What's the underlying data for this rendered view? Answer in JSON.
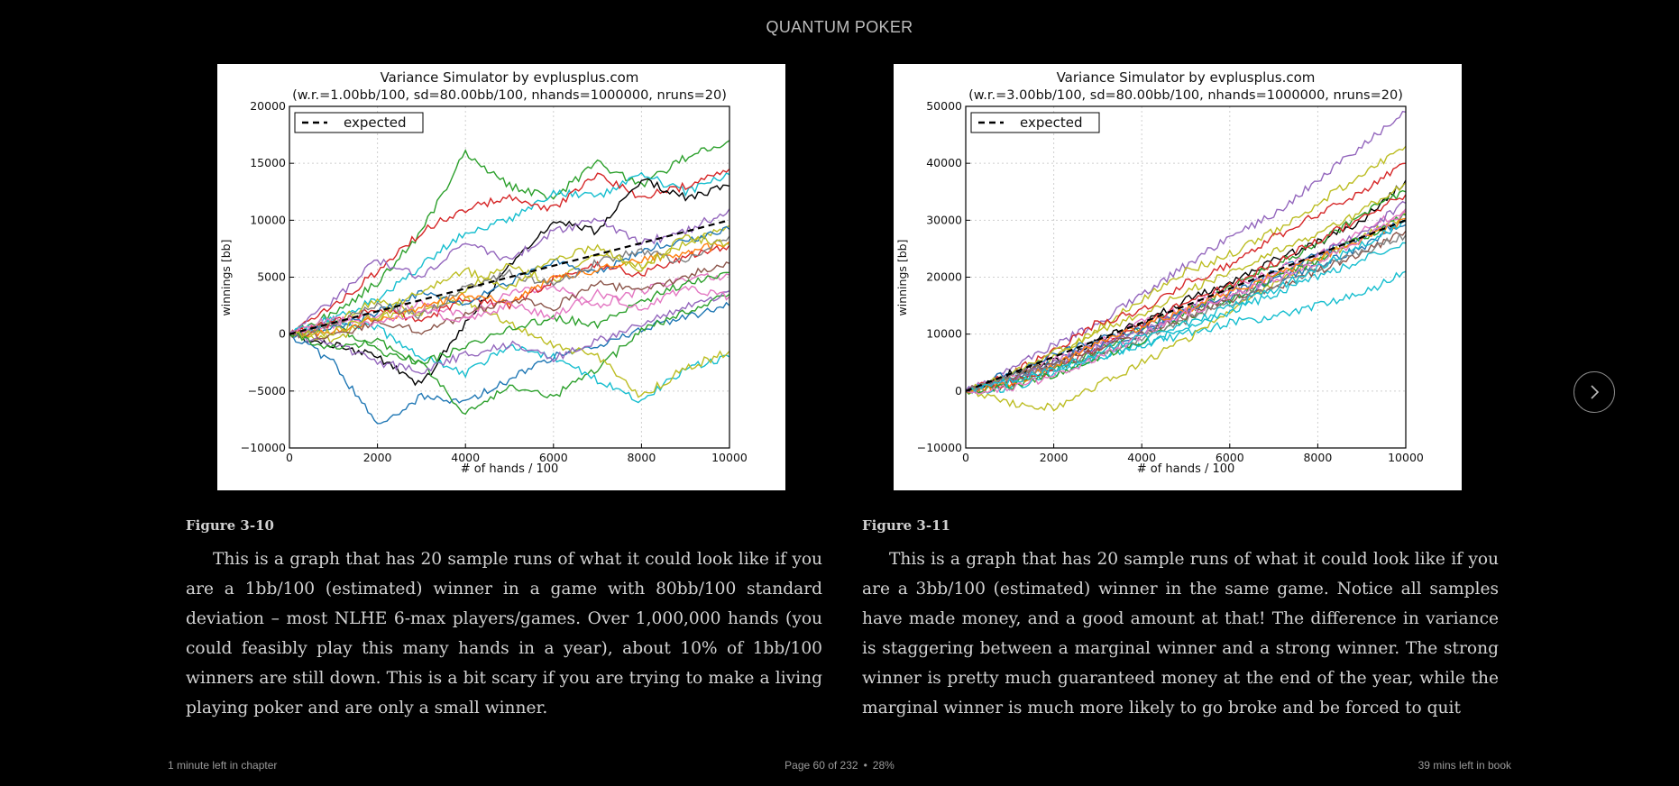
{
  "header": {
    "book_title": "QUANTUM POKER"
  },
  "figures": [
    {
      "caption": "Figure 3-10",
      "paragraph": "This is a graph that has 20 sample runs of what it could look like if you are a 1bb/100 (estimated) winner in a game with 80bb/100 standard deviation – most NLHE 6-max players/games. Over 1,000,000 hands (you could feasibly play this many hands in a year), about 10% of 1bb/100 winners are still down. This is a bit scary if you are trying to make a living playing poker and are only a small winner."
    },
    {
      "caption": "Figure 3-11",
      "paragraph": "This is a graph that has 20 sample runs of what it could look like if you are a 3bb/100 (estimated) winner in the same game. Notice all samples have made money, and a good amount at that! The difference in variance is staggering between a marginal winner and a strong winner. The strong winner is pretty much guaranteed money at the end of the year, while the marginal winner is much more likely to go broke and be forced to quit"
    }
  ],
  "chart_data": [
    {
      "type": "line",
      "title": "Variance Simulator by evplusplus.com",
      "subtitle": "(w.r.=1.00bb/100, sd=80.00bb/100, nhands=1000000, nruns=20)",
      "xlabel": "# of hands / 100",
      "ylabel": "winnings [bb]",
      "xlim": [
        0,
        10000
      ],
      "ylim": [
        -10000,
        20000
      ],
      "xticks": [
        0,
        2000,
        4000,
        6000,
        8000,
        10000
      ],
      "yticks": [
        -10000,
        -5000,
        0,
        5000,
        10000,
        15000,
        20000
      ],
      "ytick_labels": [
        "−10000",
        "−5000",
        "0",
        "5000",
        "10000",
        "15000",
        "20000"
      ],
      "grid": true,
      "legend": {
        "position": "top-left",
        "entries": [
          "expected"
        ]
      },
      "expected": {
        "x": [
          0,
          10000
        ],
        "y": [
          0,
          10000
        ]
      },
      "series": [
        {
          "color": "#2ca02c",
          "values": [
            0,
            1800,
            4500,
            9000,
            16000,
            13000,
            12000,
            15000,
            13000,
            15500,
            17000
          ]
        },
        {
          "color": "#17becf",
          "values": [
            0,
            1500,
            3000,
            6000,
            9000,
            10000,
            12500,
            12000,
            14000,
            12500,
            14000
          ]
        },
        {
          "color": "#d62728",
          "values": [
            0,
            2500,
            5500,
            9000,
            11000,
            12000,
            11000,
            14000,
            12000,
            13000,
            14500
          ]
        },
        {
          "color": "#000000",
          "values": [
            0,
            -1000,
            -2000,
            -4500,
            1000,
            6000,
            10000,
            9000,
            13500,
            12000,
            13000
          ]
        },
        {
          "color": "#9467bd",
          "values": [
            0,
            3000,
            6500,
            5000,
            8000,
            6500,
            9000,
            10000,
            8000,
            9000,
            11000
          ]
        },
        {
          "color": "#bcbd22",
          "values": [
            0,
            1000,
            3000,
            2000,
            4000,
            6000,
            4500,
            7000,
            6000,
            8000,
            9500
          ]
        },
        {
          "color": "#1f77b4",
          "values": [
            0,
            -2500,
            -8000,
            -5500,
            -6000,
            -4000,
            -2000,
            -1000,
            500,
            1500,
            2500
          ]
        },
        {
          "color": "#2ca02c",
          "values": [
            0,
            800,
            -1500,
            -2500,
            -7000,
            -4500,
            -5500,
            -3000,
            200,
            2000,
            3500
          ]
        },
        {
          "color": "#17becf",
          "values": [
            0,
            1200,
            500,
            -2000,
            -3500,
            -1000,
            -2000,
            -4000,
            -6000,
            -3000,
            -2000
          ]
        },
        {
          "color": "#bcbd22",
          "values": [
            0,
            -500,
            1500,
            2000,
            3000,
            1000,
            -1000,
            -2000,
            -5500,
            -3000,
            -1500
          ]
        },
        {
          "color": "#e377c2",
          "values": [
            0,
            800,
            1800,
            2800,
            1500,
            3500,
            4200,
            2500,
            3800,
            4800,
            5200
          ]
        },
        {
          "color": "#d62728",
          "values": [
            0,
            1000,
            2200,
            1200,
            3200,
            2400,
            4800,
            6200,
            5200,
            6800,
            7800
          ]
        },
        {
          "color": "#9467bd",
          "values": [
            0,
            -800,
            -2500,
            -3200,
            -1800,
            -900,
            -2200,
            -600,
            800,
            2300,
            3800
          ]
        },
        {
          "color": "#1f77b4",
          "values": [
            0,
            600,
            1900,
            3600,
            2600,
            4600,
            6400,
            5400,
            7400,
            8200,
            9200
          ]
        },
        {
          "color": "#ff7f0e",
          "values": [
            0,
            300,
            1300,
            2300,
            3400,
            2900,
            4900,
            5600,
            6600,
            7100,
            8100
          ]
        },
        {
          "color": "#8c564b",
          "values": [
            0,
            -300,
            1100,
            200,
            1600,
            3100,
            2300,
            4600,
            3600,
            5100,
            6200
          ]
        },
        {
          "color": "#7f7f7f",
          "values": [
            0,
            900,
            2600,
            1600,
            4100,
            5300,
            4300,
            6300,
            7300,
            6300,
            8600
          ]
        },
        {
          "color": "#2ca02c",
          "values": [
            0,
            -1300,
            -600,
            -2600,
            -1100,
            400,
            1400,
            900,
            2900,
            4400,
            5400
          ]
        },
        {
          "color": "#e377c2",
          "values": [
            0,
            1400,
            700,
            2100,
            1100,
            2600,
            1600,
            3600,
            2100,
            4100,
            3300
          ]
        },
        {
          "color": "#bcbd22",
          "values": [
            0,
            200,
            1600,
            3900,
            5600,
            4100,
            6600,
            7600,
            5600,
            8600,
            7900
          ]
        }
      ]
    },
    {
      "type": "line",
      "title": "Variance Simulator by evplusplus.com",
      "subtitle": "(w.r.=3.00bb/100, sd=80.00bb/100, nhands=1000000, nruns=20)",
      "xlabel": "# of hands / 100",
      "ylabel": "winnings [bb]",
      "xlim": [
        0,
        10000
      ],
      "ylim": [
        -10000,
        50000
      ],
      "xticks": [
        0,
        2000,
        4000,
        6000,
        8000,
        10000
      ],
      "yticks": [
        -10000,
        0,
        10000,
        20000,
        30000,
        40000,
        50000
      ],
      "ytick_labels": [
        "−10000",
        "0",
        "10000",
        "20000",
        "30000",
        "40000",
        "50000"
      ],
      "grid": true,
      "legend": {
        "position": "top-left",
        "entries": [
          "expected"
        ]
      },
      "expected": {
        "x": [
          0,
          10000
        ],
        "y": [
          0,
          30000
        ]
      },
      "series": [
        {
          "color": "#9467bd",
          "values": [
            0,
            4000,
            8000,
            12000,
            17000,
            22000,
            27000,
            31000,
            37000,
            43000,
            49000
          ]
        },
        {
          "color": "#bcbd22",
          "values": [
            0,
            1500,
            6000,
            11000,
            16000,
            21000,
            24000,
            28000,
            33000,
            38000,
            43000
          ]
        },
        {
          "color": "#d62728",
          "values": [
            0,
            3000,
            7000,
            12000,
            14000,
            19000,
            22000,
            27000,
            31000,
            35000,
            40000
          ]
        },
        {
          "color": "#000000",
          "values": [
            0,
            3000,
            5000,
            9000,
            12000,
            16000,
            19000,
            23000,
            26000,
            30000,
            37000
          ]
        },
        {
          "color": "#17becf",
          "values": [
            0,
            2000,
            4000,
            6000,
            8000,
            10000,
            12000,
            13000,
            15000,
            17000,
            21000
          ]
        },
        {
          "color": "#bcbd22",
          "values": [
            0,
            -2000,
            -3000,
            1000,
            5000,
            9000,
            14000,
            19000,
            23000,
            27000,
            31000
          ]
        },
        {
          "color": "#1f77b4",
          "values": [
            0,
            2000,
            5000,
            8000,
            10000,
            14000,
            17000,
            21000,
            24000,
            27000,
            30000
          ]
        },
        {
          "color": "#2ca02c",
          "values": [
            0,
            1000,
            4000,
            7000,
            11000,
            14000,
            18000,
            22000,
            26000,
            31000,
            35000
          ]
        },
        {
          "color": "#e377c2",
          "values": [
            0,
            2500,
            5500,
            8500,
            12000,
            14500,
            18000,
            21000,
            24000,
            28000,
            32000
          ]
        },
        {
          "color": "#17becf",
          "values": [
            0,
            500,
            3000,
            6000,
            8000,
            11000,
            14000,
            17000,
            20000,
            23000,
            26000
          ]
        },
        {
          "color": "#d62728",
          "values": [
            0,
            1500,
            3500,
            7500,
            11500,
            15500,
            18500,
            22500,
            26500,
            30500,
            34500
          ]
        },
        {
          "color": "#1f77b4",
          "values": [
            0,
            3200,
            6200,
            9200,
            11200,
            14200,
            16200,
            19200,
            22200,
            25200,
            29200
          ]
        },
        {
          "color": "#9467bd",
          "values": [
            0,
            1800,
            4800,
            7800,
            10800,
            13800,
            16800,
            19800,
            23800,
            27800,
            33000
          ]
        },
        {
          "color": "#bcbd22",
          "values": [
            0,
            2600,
            6600,
            10600,
            13600,
            17600,
            20600,
            24600,
            27600,
            31600,
            36600
          ]
        },
        {
          "color": "#2ca02c",
          "values": [
            0,
            900,
            2900,
            5900,
            8900,
            12900,
            15900,
            19900,
            22900,
            26900,
            30900
          ]
        },
        {
          "color": "#8c564b",
          "values": [
            0,
            2100,
            5100,
            7100,
            10100,
            13100,
            16100,
            18100,
            21100,
            24100,
            28100
          ]
        },
        {
          "color": "#ff7f0e",
          "values": [
            0,
            1300,
            4300,
            8300,
            11300,
            14300,
            17300,
            20300,
            23300,
            26300,
            30300
          ]
        },
        {
          "color": "#7f7f7f",
          "values": [
            0,
            2400,
            4400,
            6400,
            9400,
            12400,
            15400,
            18400,
            21400,
            24400,
            27400
          ]
        },
        {
          "color": "#e377c2",
          "values": [
            0,
            600,
            2600,
            5600,
            9600,
            13600,
            16600,
            19600,
            22600,
            26600,
            31600
          ]
        },
        {
          "color": "#17becf",
          "values": [
            0,
            1700,
            3700,
            6700,
            9700,
            11700,
            14700,
            17700,
            21700,
            25700,
            29700
          ]
        }
      ]
    }
  ],
  "footer": {
    "left": "1 minute left in chapter",
    "page": "Page 60 of 232",
    "percent": "28%",
    "right": "39 mins left in book"
  },
  "icons": {
    "next": "chevron-right-icon"
  }
}
